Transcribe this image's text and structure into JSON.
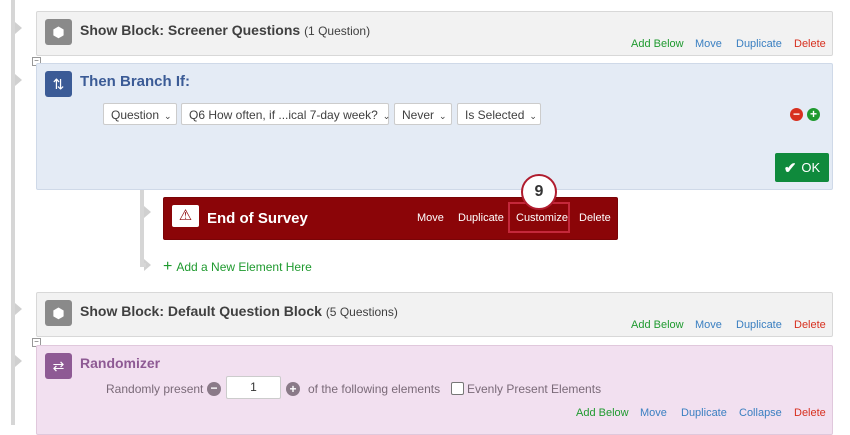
{
  "screener_block": {
    "title": "Show Block: Screener Questions",
    "count": "(1 Question)",
    "actions": [
      "Add Below",
      "Move",
      "Duplicate",
      "Delete"
    ]
  },
  "branch": {
    "title": "Then Branch If:",
    "conditions": [
      "Question",
      "Q6 How often, if ...ical 7-day week?",
      "Never",
      "Is Selected"
    ],
    "ok_label": "OK"
  },
  "end_of_survey": {
    "title": "End of Survey",
    "actions": [
      "Move",
      "Duplicate",
      "Customize",
      "Delete"
    ],
    "step_marker": "9"
  },
  "add_element": "Add a New Element Here",
  "default_block": {
    "title": "Show Block: Default Question Block",
    "count": "(5 Questions)",
    "actions": [
      "Add Below",
      "Move",
      "Duplicate",
      "Delete"
    ]
  },
  "randomizer": {
    "title": "Randomizer",
    "randomly_present": "Randomly present",
    "value": "1",
    "of_following": "of the following elements",
    "evenly_label": "Evenly Present Elements",
    "evenly_checked": false,
    "actions": [
      "Add Below",
      "Move",
      "Duplicate",
      "Collapse",
      "Delete"
    ]
  },
  "colors": {
    "green": "#1f9a2f",
    "blue": "#3a7fc1",
    "red": "#d7301f",
    "end_survey_bg": "#8b0508",
    "branch_bg": "#e4ebf5",
    "randomizer_bg": "#f2e0f0"
  }
}
